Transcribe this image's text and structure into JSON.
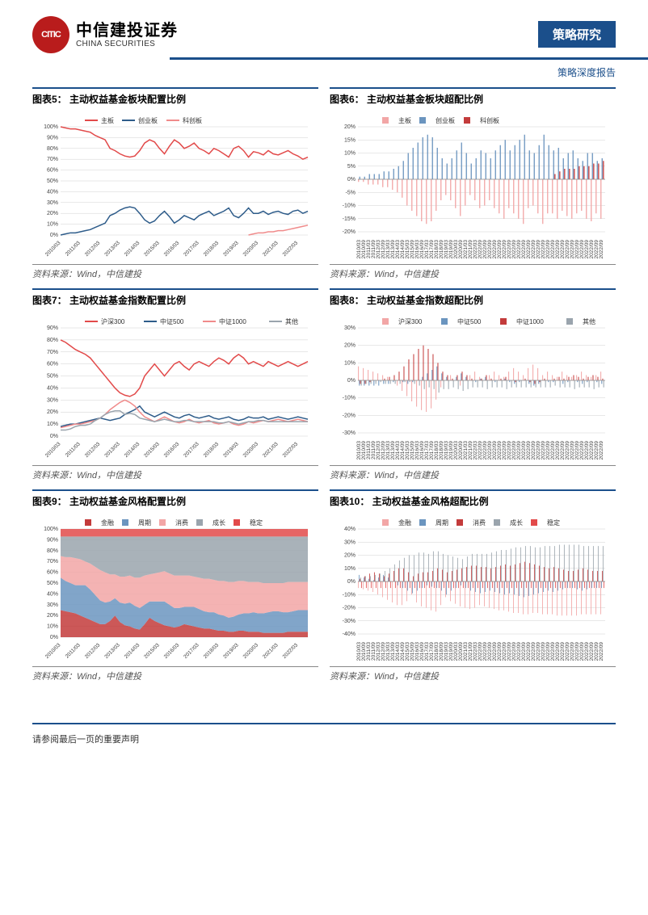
{
  "header": {
    "logo_inner": "CITIC",
    "brand_cn": "中信建投证券",
    "brand_en": "CHINA SECURITIES",
    "band_label": "策略研究",
    "sub_label": "策略深度报告"
  },
  "footer": {
    "disclaimer": "请参阅最后一页的重要声明"
  },
  "colors": {
    "brand_blue": "#1b4f8b",
    "brand_red": "#b91c1c",
    "grid": "#d0d0d0",
    "red": "#e24a4a",
    "blue": "#2e5c8a",
    "pink": "#f08b8b",
    "lblue": "#6b95bf",
    "grey": "#9aa4ad",
    "darkred": "#c33b3b",
    "salmon": "#f2a6a6"
  },
  "x_years": [
    "2010/03",
    "2011/03",
    "2012/03",
    "2013/03",
    "2014/03",
    "2015/03",
    "2016/03",
    "2017/03",
    "2018/03",
    "2019/03",
    "2020/03",
    "2021/03",
    "2022/03"
  ],
  "x_half": [
    "2010/03",
    "2010/09",
    "2011/03",
    "2011/09",
    "2012/03",
    "2012/09",
    "2013/03",
    "2013/09",
    "2014/03",
    "2014/09",
    "2015/03",
    "2015/09",
    "2016/03",
    "2016/09",
    "2017/03",
    "2017/09",
    "2018/03",
    "2018/09",
    "2019/03",
    "2019/09",
    "2020/03",
    "2020/09",
    "2021/03",
    "2021/09",
    "2022/03",
    "2022/09"
  ],
  "chart5": {
    "title": "图表5： 主动权益基金板块配置比例",
    "source": "资料来源：Wind，中信建投",
    "legend": [
      "主板",
      "创业板",
      "科创板"
    ],
    "legend_colors": [
      "#e24a4a",
      "#2e5c8a",
      "#f08b8b"
    ],
    "ymin": 0,
    "ymax": 100,
    "ystep": 10,
    "ysuffix": "%",
    "series": {
      "main": [
        100,
        99,
        98,
        98,
        97,
        96,
        95,
        92,
        90,
        88,
        80,
        78,
        75,
        73,
        72,
        73,
        78,
        85,
        88,
        86,
        80,
        75,
        82,
        88,
        85,
        80,
        82,
        85,
        80,
        78,
        75,
        80,
        78,
        75,
        72,
        80,
        82,
        78,
        72,
        77,
        76,
        74,
        78,
        75,
        74,
        76,
        78,
        75,
        73,
        70,
        72
      ],
      "chinext": [
        0,
        1,
        2,
        2,
        3,
        4,
        5,
        7,
        9,
        11,
        18,
        20,
        23,
        25,
        26,
        25,
        20,
        14,
        11,
        13,
        18,
        22,
        17,
        11,
        14,
        18,
        16,
        14,
        18,
        20,
        22,
        18,
        20,
        22,
        25,
        18,
        16,
        20,
        25,
        20,
        20,
        22,
        19,
        21,
        22,
        20,
        19,
        22,
        23,
        20,
        22
      ],
      "star": [
        null,
        null,
        null,
        null,
        null,
        null,
        null,
        null,
        null,
        null,
        null,
        null,
        null,
        null,
        null,
        null,
        null,
        null,
        null,
        null,
        null,
        null,
        null,
        null,
        null,
        null,
        null,
        null,
        null,
        null,
        null,
        null,
        null,
        null,
        null,
        null,
        null,
        null,
        0,
        1,
        2,
        2,
        3,
        3,
        4,
        4,
        5,
        6,
        7,
        8,
        9
      ]
    }
  },
  "chart6": {
    "title": "图表6： 主动权益基金板块超配比例",
    "source": "资料来源：Wind，中信建投",
    "legend": [
      "主板",
      "创业板",
      "科创板"
    ],
    "legend_colors": [
      "#f2a6a6",
      "#6b95bf",
      "#c33b3b"
    ],
    "ymin": -20,
    "ymax": 20,
    "ystep": 5,
    "ysuffix": "%",
    "series": {
      "main": [
        -1,
        -1,
        -2,
        -2,
        -2,
        -3,
        -3,
        -4,
        -5,
        -7,
        -10,
        -12,
        -14,
        -16,
        -17,
        -16,
        -12,
        -8,
        -6,
        -8,
        -11,
        -14,
        -10,
        -6,
        -8,
        -11,
        -10,
        -8,
        -11,
        -13,
        -15,
        -11,
        -13,
        -15,
        -17,
        -11,
        -10,
        -13,
        -17,
        -13,
        -13,
        -15,
        -12,
        -14,
        -15,
        -13,
        -12,
        -15,
        -16,
        -13,
        -15
      ],
      "chinext": [
        1,
        1,
        2,
        2,
        2,
        3,
        3,
        4,
        5,
        7,
        10,
        12,
        14,
        16,
        17,
        16,
        12,
        8,
        6,
        8,
        11,
        14,
        10,
        6,
        8,
        11,
        10,
        8,
        11,
        13,
        15,
        11,
        13,
        15,
        17,
        11,
        10,
        13,
        17,
        13,
        11,
        12,
        8,
        10,
        11,
        8,
        7,
        10,
        10,
        7,
        8
      ],
      "star": [
        0,
        0,
        0,
        0,
        0,
        0,
        0,
        0,
        0,
        0,
        0,
        0,
        0,
        0,
        0,
        0,
        0,
        0,
        0,
        0,
        0,
        0,
        0,
        0,
        0,
        0,
        0,
        0,
        0,
        0,
        0,
        0,
        0,
        0,
        0,
        0,
        0,
        0,
        0,
        0,
        2,
        3,
        4,
        4,
        4,
        5,
        5,
        5,
        6,
        6,
        7
      ]
    }
  },
  "chart7": {
    "title": "图表7： 主动权益基金指数配置比例",
    "source": "资料来源：Wind，中信建投",
    "legend": [
      "沪深300",
      "中证500",
      "中证1000",
      "其他"
    ],
    "legend_colors": [
      "#e24a4a",
      "#2e5c8a",
      "#f08b8b",
      "#9aa4ad"
    ],
    "ymin": 0,
    "ymax": 90,
    "ystep": 10,
    "ysuffix": "%",
    "series": {
      "hs300": [
        80,
        78,
        75,
        72,
        70,
        68,
        65,
        60,
        55,
        50,
        45,
        40,
        36,
        34,
        33,
        35,
        40,
        50,
        55,
        60,
        55,
        50,
        55,
        60,
        62,
        58,
        55,
        60,
        62,
        60,
        58,
        62,
        65,
        63,
        60,
        65,
        68,
        65,
        60,
        62,
        60,
        58,
        62,
        60,
        58,
        60,
        62,
        60,
        58,
        60,
        62
      ],
      "csi500": [
        8,
        9,
        10,
        10,
        11,
        12,
        13,
        14,
        15,
        14,
        13,
        14,
        15,
        18,
        20,
        22,
        25,
        20,
        18,
        16,
        18,
        20,
        18,
        16,
        15,
        17,
        18,
        16,
        15,
        16,
        17,
        15,
        14,
        15,
        16,
        14,
        13,
        14,
        16,
        15,
        15,
        16,
        14,
        15,
        16,
        15,
        14,
        15,
        16,
        15,
        14
      ],
      "csi1000": [
        7,
        8,
        9,
        10,
        10,
        11,
        12,
        13,
        15,
        18,
        22,
        25,
        28,
        30,
        28,
        25,
        20,
        16,
        14,
        12,
        14,
        16,
        14,
        12,
        11,
        12,
        14,
        12,
        11,
        12,
        13,
        11,
        10,
        11,
        12,
        10,
        9,
        10,
        12,
        11,
        12,
        13,
        12,
        13,
        14,
        13,
        12,
        13,
        14,
        13,
        12
      ],
      "other": [
        5,
        5,
        6,
        8,
        9,
        9,
        10,
        13,
        15,
        18,
        20,
        21,
        21,
        18,
        19,
        18,
        15,
        14,
        13,
        12,
        13,
        14,
        13,
        12,
        12,
        13,
        13,
        12,
        12,
        12,
        12,
        12,
        11,
        11,
        12,
        11,
        10,
        11,
        12,
        12,
        13,
        13,
        12,
        12,
        12,
        12,
        12,
        12,
        12,
        12,
        12
      ]
    }
  },
  "chart8": {
    "title": "图表8： 主动权益基金指数超配比例",
    "source": "资料来源：Wind，中信建投",
    "legend": [
      "沪深300",
      "中证500",
      "中证1000",
      "其他"
    ],
    "legend_colors": [
      "#f2a6a6",
      "#6b95bf",
      "#c33b3b",
      "#9aa4ad"
    ],
    "ymin": -30,
    "ymax": 30,
    "ystep": 10,
    "ysuffix": "%",
    "series": {
      "hs300": [
        8,
        7,
        6,
        5,
        4,
        3,
        2,
        0,
        -3,
        -6,
        -9,
        -12,
        -15,
        -17,
        -18,
        -16,
        -11,
        -4,
        0,
        3,
        0,
        -3,
        0,
        3,
        5,
        2,
        0,
        3,
        5,
        3,
        2,
        5,
        7,
        5,
        3,
        7,
        9,
        7,
        3,
        5,
        3,
        2,
        5,
        3,
        2,
        3,
        5,
        3,
        2,
        3,
        5
      ],
      "csi500": [
        -3,
        -3,
        -3,
        -3,
        -3,
        -2,
        -2,
        -1,
        0,
        -1,
        -2,
        -1,
        0,
        2,
        4,
        6,
        8,
        4,
        2,
        0,
        2,
        4,
        2,
        0,
        -1,
        1,
        2,
        0,
        -1,
        0,
        1,
        -1,
        -2,
        -1,
        0,
        -2,
        -3,
        -2,
        0,
        -1,
        -1,
        0,
        -2,
        -1,
        0,
        -1,
        -2,
        -1,
        0,
        -1,
        -2
      ],
      "csi1000": [
        -2,
        -2,
        -1,
        0,
        0,
        1,
        2,
        3,
        5,
        8,
        12,
        15,
        18,
        20,
        18,
        15,
        10,
        5,
        3,
        1,
        3,
        5,
        3,
        1,
        0,
        1,
        3,
        1,
        0,
        1,
        2,
        0,
        -1,
        0,
        1,
        -1,
        -2,
        -1,
        1,
        0,
        1,
        2,
        1,
        2,
        3,
        2,
        1,
        2,
        3,
        2,
        1
      ],
      "other": [
        -3,
        -2,
        -2,
        -2,
        -1,
        -2,
        -2,
        -2,
        -2,
        -1,
        -1,
        -2,
        -3,
        -5,
        -4,
        -5,
        -7,
        -5,
        -5,
        -4,
        -5,
        -6,
        -5,
        -4,
        -4,
        -4,
        -5,
        -4,
        -4,
        -4,
        -5,
        -4,
        -4,
        -4,
        -4,
        -4,
        -4,
        -4,
        -4,
        -4,
        -3,
        -4,
        -4,
        -4,
        -5,
        -4,
        -4,
        -4,
        -5,
        -4,
        -4
      ]
    }
  },
  "chart9": {
    "title": "图表9： 主动权益基金风格配置比例",
    "source": "资料来源：Wind，中信建投",
    "legend": [
      "金融",
      "周期",
      "消费",
      "成长",
      "稳定"
    ],
    "legend_colors": [
      "#c33b3b",
      "#6b95bf",
      "#f2a6a6",
      "#9aa4ad",
      "#e24a4a"
    ],
    "ymin": 0,
    "ymax": 100,
    "ystep": 10,
    "ysuffix": "%",
    "series": {
      "fin": [
        25,
        24,
        23,
        22,
        20,
        18,
        16,
        14,
        12,
        12,
        15,
        20,
        14,
        11,
        10,
        8,
        7,
        12,
        18,
        15,
        13,
        11,
        10,
        9,
        10,
        12,
        11,
        10,
        9,
        8,
        8,
        7,
        6,
        6,
        5,
        5,
        6,
        6,
        5,
        5,
        5,
        4,
        4,
        4,
        4,
        4,
        5,
        5,
        5,
        5,
        5
      ],
      "cyc": [
        30,
        28,
        27,
        26,
        28,
        30,
        28,
        25,
        22,
        20,
        18,
        16,
        18,
        20,
        22,
        21,
        20,
        18,
        15,
        18,
        20,
        22,
        20,
        18,
        17,
        16,
        17,
        18,
        17,
        16,
        15,
        16,
        15,
        14,
        13,
        14,
        15,
        16,
        17,
        18,
        17,
        18,
        19,
        20,
        20,
        19,
        18,
        19,
        20,
        20,
        20
      ],
      "cons": [
        20,
        22,
        24,
        25,
        24,
        22,
        24,
        26,
        28,
        28,
        25,
        22,
        24,
        25,
        25,
        26,
        28,
        27,
        25,
        26,
        27,
        28,
        29,
        30,
        30,
        29,
        29,
        28,
        29,
        30,
        31,
        30,
        31,
        32,
        33,
        32,
        31,
        30,
        29,
        28,
        29,
        28,
        27,
        26,
        26,
        27,
        28,
        27,
        26,
        26,
        26
      ],
      "grow": [
        18,
        19,
        19,
        20,
        21,
        23,
        25,
        28,
        31,
        33,
        35,
        35,
        37,
        37,
        36,
        38,
        38,
        36,
        35,
        34,
        33,
        32,
        34,
        36,
        36,
        36,
        36,
        37,
        38,
        39,
        39,
        40,
        41,
        41,
        42,
        42,
        41,
        41,
        42,
        42,
        42,
        43,
        43,
        43,
        43,
        43,
        42,
        42,
        42,
        42,
        42
      ],
      "stab": [
        7,
        7,
        7,
        7,
        7,
        7,
        7,
        7,
        7,
        7,
        7,
        7,
        7,
        7,
        7,
        7,
        7,
        7,
        7,
        7,
        7,
        7,
        7,
        7,
        7,
        7,
        7,
        7,
        7,
        7,
        7,
        7,
        7,
        7,
        7,
        7,
        7,
        7,
        7,
        7,
        7,
        7,
        7,
        7,
        7,
        7,
        7,
        7,
        7,
        7,
        7
      ]
    }
  },
  "chart10": {
    "title": "图表10： 主动权益基金风格超配比例",
    "source": "资料来源：Wind，中信建投",
    "legend": [
      "金融",
      "周期",
      "消费",
      "成长",
      "稳定"
    ],
    "legend_colors": [
      "#f2a6a6",
      "#6b95bf",
      "#c33b3b",
      "#9aa4ad",
      "#e24a4a"
    ],
    "ymin": -40,
    "ymax": 40,
    "ystep": 10,
    "ysuffix": "%",
    "series": {
      "fin": [
        -5,
        -6,
        -7,
        -8,
        -10,
        -12,
        -14,
        -16,
        -18,
        -18,
        -15,
        -10,
        -16,
        -19,
        -20,
        -22,
        -23,
        -18,
        -12,
        -15,
        -17,
        -19,
        -20,
        -21,
        -20,
        -18,
        -19,
        -20,
        -21,
        -22,
        -22,
        -23,
        -24,
        -24,
        -25,
        -25,
        -24,
        -24,
        -25,
        -25,
        -25,
        -26,
        -26,
        -26,
        -26,
        -26,
        -25,
        -25,
        -25,
        -25,
        -25
      ],
      "cyc": [
        5,
        3,
        2,
        1,
        3,
        5,
        3,
        0,
        -3,
        -5,
        -7,
        -9,
        -7,
        -5,
        -3,
        -4,
        -5,
        -7,
        -10,
        -7,
        -5,
        -3,
        -5,
        -7,
        -8,
        -9,
        -8,
        -7,
        -8,
        -9,
        -10,
        -9,
        -10,
        -11,
        -12,
        -11,
        -10,
        -9,
        -8,
        -7,
        -8,
        -7,
        -6,
        -5,
        -5,
        -6,
        -7,
        -6,
        -5,
        -5,
        -5
      ],
      "cons": [
        2,
        4,
        6,
        7,
        6,
        4,
        6,
        8,
        10,
        10,
        7,
        4,
        6,
        7,
        7,
        8,
        10,
        9,
        7,
        8,
        9,
        10,
        11,
        12,
        12,
        11,
        11,
        10,
        11,
        12,
        13,
        12,
        13,
        14,
        15,
        14,
        13,
        12,
        11,
        10,
        11,
        10,
        9,
        8,
        8,
        9,
        10,
        9,
        8,
        8,
        8
      ],
      "grow": [
        3,
        4,
        4,
        5,
        6,
        8,
        10,
        13,
        16,
        18,
        20,
        20,
        22,
        22,
        21,
        23,
        23,
        21,
        20,
        19,
        18,
        17,
        19,
        21,
        21,
        21,
        21,
        22,
        23,
        24,
        24,
        25,
        26,
        26,
        27,
        27,
        26,
        26,
        27,
        27,
        27,
        28,
        28,
        28,
        28,
        28,
        27,
        27,
        27,
        27,
        27
      ],
      "stab": [
        -5,
        -5,
        -5,
        -5,
        -5,
        -5,
        -5,
        -5,
        -5,
        -5,
        -5,
        -5,
        -5,
        -5,
        -5,
        -5,
        -5,
        -5,
        -5,
        -5,
        -5,
        -5,
        -5,
        -5,
        -5,
        -5,
        -5,
        -5,
        -5,
        -5,
        -5,
        -5,
        -5,
        -5,
        -5,
        -5,
        -5,
        -5,
        -5,
        -5,
        -5,
        -5,
        -5,
        -5,
        -5,
        -5,
        -5,
        -5,
        -5,
        -5,
        -5
      ]
    }
  }
}
